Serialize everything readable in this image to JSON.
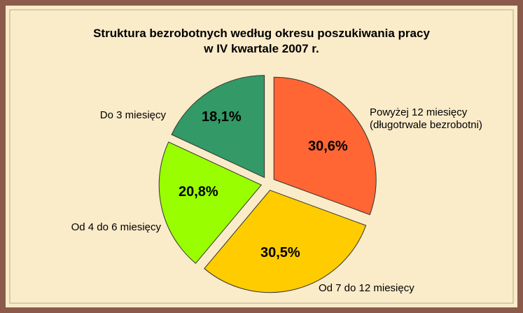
{
  "chart_data": {
    "type": "pie",
    "title": [
      "Struktura bezrobotnych według okresu poszukiwania pracy",
      "w IV kwartale 2007 r."
    ],
    "categories": [
      "Powyżej 12 miesięcy (długotrwale bezrobotni)",
      "Od 7 do 12 miesięcy",
      "Od 4 do 6 miesięcy",
      "Do 3 miesięcy"
    ],
    "values": [
      30.6,
      30.5,
      20.8,
      18.1
    ],
    "value_labels": [
      "30,6%",
      "30,5%",
      "20,8%",
      "18,1%"
    ],
    "colors": [
      "#ff6633",
      "#ffcc00",
      "#99ff00",
      "#339966"
    ]
  }
}
